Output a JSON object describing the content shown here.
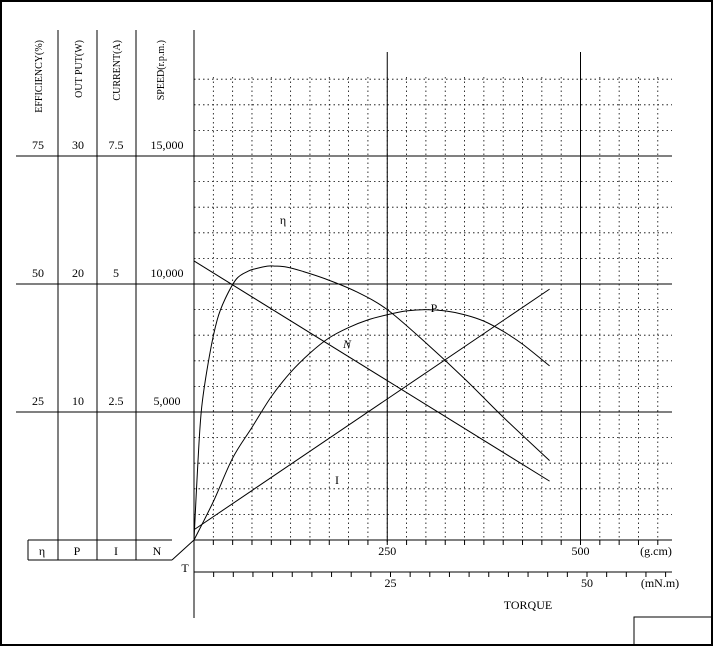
{
  "chart_data": {
    "type": "line",
    "title": "",
    "xlabel": "TORQUE",
    "x_units": [
      {
        "unit": "(g.cm)",
        "ticks": [
          "250",
          "500"
        ]
      },
      {
        "unit": "(mN.m)",
        "ticks": [
          "25",
          "50"
        ]
      }
    ],
    "y_axes": [
      {
        "key": "efficiency",
        "label": "EFFICIENCY(%)",
        "symbol": "η",
        "ticks": [
          "75",
          "50",
          "25"
        ]
      },
      {
        "key": "output",
        "label": "OUT PUT(W)",
        "symbol": "P",
        "ticks": [
          "30",
          "20",
          "10"
        ]
      },
      {
        "key": "current",
        "label": "CURRENT(A)",
        "symbol": "I",
        "ticks": [
          "7.5",
          "5",
          "2.5"
        ]
      },
      {
        "key": "speed",
        "label": "SPEED(r.p.m.)",
        "symbol": "N",
        "ticks": [
          "15,000",
          "10,000",
          "5,000"
        ]
      }
    ],
    "origin_label": "T",
    "xlim_gcm": [
      0,
      600
    ],
    "grid": true,
    "series": [
      {
        "name": "η",
        "axis": "efficiency",
        "x_gcm": [
          0,
          5,
          10,
          20,
          30,
          40,
          55,
          70,
          80,
          95,
          105,
          120,
          140,
          170,
          210,
          250,
          300,
          350,
          400,
          460
        ],
        "values": [
          0,
          15,
          26,
          36,
          43,
          47,
          51,
          52.5,
          53,
          53.5,
          53.5,
          53.3,
          52.5,
          51,
          48.5,
          45,
          38.5,
          31.5,
          24,
          15.5
        ]
      },
      {
        "name": "P",
        "axis": "output",
        "x_gcm": [
          0,
          25,
          50,
          75,
          100,
          125,
          150,
          175,
          200,
          225,
          250,
          275,
          300,
          325,
          350,
          375,
          400,
          425,
          460
        ],
        "values": [
          0,
          3,
          6.4,
          8.8,
          11.2,
          13.1,
          14.6,
          15.8,
          16.6,
          17.2,
          17.6,
          17.9,
          18.0,
          17.9,
          17.6,
          17.1,
          16.3,
          15.3,
          13.6
        ]
      },
      {
        "name": "I",
        "axis": "current",
        "x_gcm": [
          0,
          460
        ],
        "values": [
          0.2,
          4.9
        ]
      },
      {
        "name": "N",
        "axis": "speed",
        "x_gcm": [
          0,
          460
        ],
        "values": [
          10900,
          2300
        ]
      }
    ]
  }
}
